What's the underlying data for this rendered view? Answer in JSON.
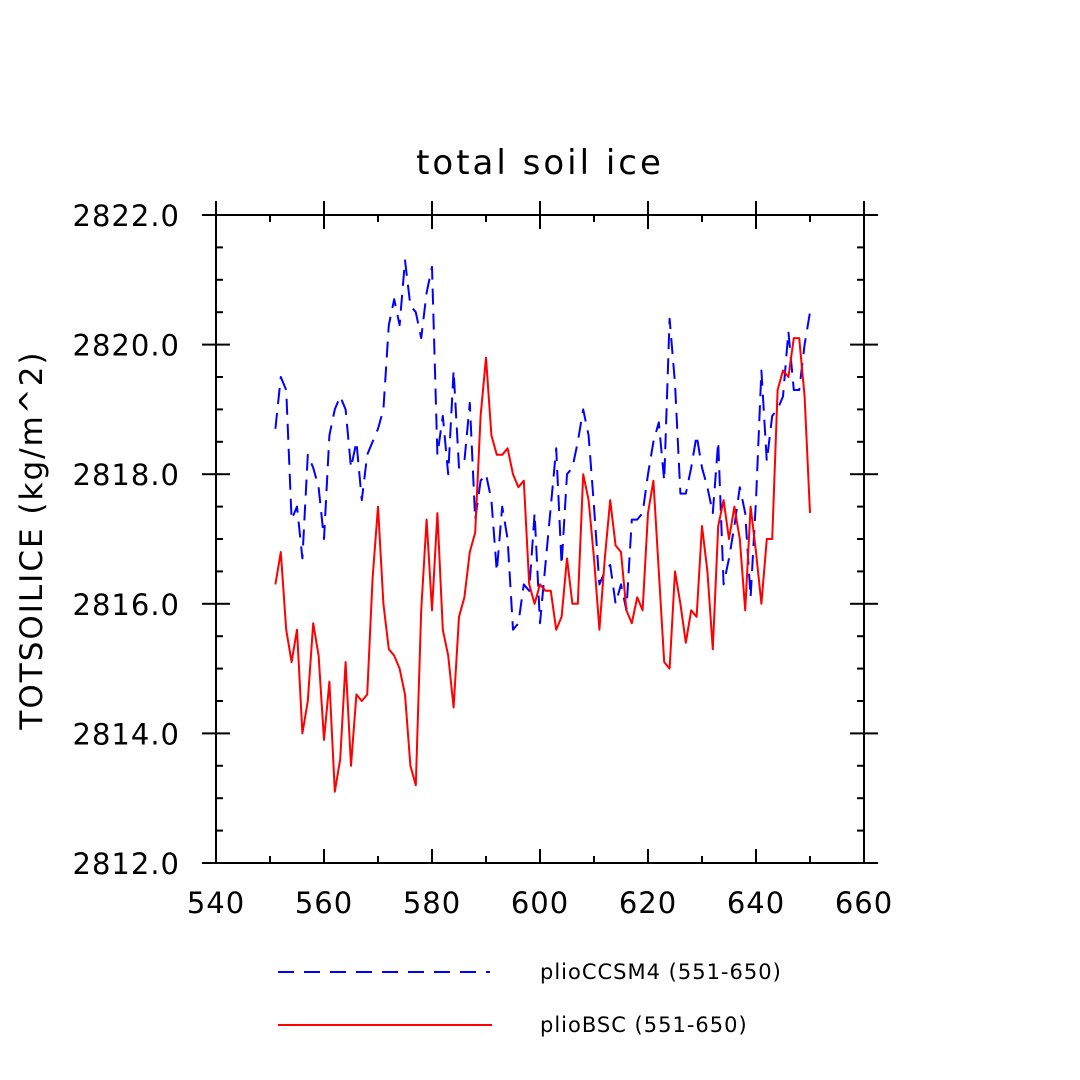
{
  "chart_data": {
    "type": "line",
    "title": "total soil ice",
    "xlabel": "",
    "ylabel": "TOTSOILICE   (kg/m^2)",
    "xlim": [
      540,
      660
    ],
    "ylim": [
      2812.0,
      2822.0
    ],
    "xticks": [
      540,
      560,
      580,
      600,
      620,
      640,
      660
    ],
    "xtick_labels": [
      "540",
      "560",
      "580",
      "600",
      "620",
      "640",
      "660"
    ],
    "yticks": [
      2812.0,
      2814.0,
      2816.0,
      2818.0,
      2820.0,
      2822.0
    ],
    "ytick_labels": [
      "2812.0",
      "2814.0",
      "2816.0",
      "2818.0",
      "2820.0",
      "2822.0"
    ],
    "grid": false,
    "legend_position": "bottom",
    "x": [
      551,
      552,
      553,
      554,
      555,
      556,
      557,
      558,
      559,
      560,
      561,
      562,
      563,
      564,
      565,
      566,
      567,
      568,
      569,
      570,
      571,
      572,
      573,
      574,
      575,
      576,
      577,
      578,
      579,
      580,
      581,
      582,
      583,
      584,
      585,
      586,
      587,
      588,
      589,
      590,
      591,
      592,
      593,
      594,
      595,
      596,
      597,
      598,
      599,
      600,
      601,
      602,
      603,
      604,
      605,
      606,
      607,
      608,
      609,
      610,
      611,
      612,
      613,
      614,
      615,
      616,
      617,
      618,
      619,
      620,
      621,
      622,
      623,
      624,
      625,
      626,
      627,
      628,
      629,
      630,
      631,
      632,
      633,
      634,
      635,
      636,
      637,
      638,
      639,
      640,
      641,
      642,
      643,
      644,
      645,
      646,
      647,
      648,
      649,
      650
    ],
    "series": [
      {
        "name": "plioCCSM4 (551-650)",
        "color": "#0000ff",
        "dash": "dashed",
        "values": [
          2818.7,
          2819.5,
          2819.3,
          2817.3,
          2817.5,
          2816.7,
          2818.3,
          2818.1,
          2817.8,
          2817.0,
          2818.6,
          2819.0,
          2819.2,
          2819.0,
          2818.1,
          2818.5,
          2817.6,
          2818.3,
          2818.5,
          2818.7,
          2819.0,
          2820.3,
          2820.7,
          2820.3,
          2821.3,
          2820.6,
          2820.5,
          2820.1,
          2820.8,
          2821.2,
          2818.3,
          2818.9,
          2818.0,
          2819.6,
          2818.1,
          2818.2,
          2819.1,
          2817.3,
          2817.9,
          2818.0,
          2817.6,
          2816.5,
          2817.5,
          2817.0,
          2815.6,
          2815.7,
          2816.3,
          2816.2,
          2817.4,
          2815.7,
          2816.6,
          2817.5,
          2818.4,
          2816.6,
          2818.0,
          2818.1,
          2818.5,
          2819.0,
          2818.6,
          2817.5,
          2816.3,
          2816.5,
          2816.6,
          2816.0,
          2816.3,
          2815.9,
          2817.3,
          2817.3,
          2817.4,
          2818.0,
          2818.5,
          2818.8,
          2817.9,
          2820.4,
          2819.4,
          2817.7,
          2817.7,
          2818.1,
          2818.6,
          2818.1,
          2817.8,
          2817.4,
          2818.5,
          2816.3,
          2816.7,
          2817.2,
          2817.8,
          2817.4,
          2816.1,
          2817.6,
          2819.6,
          2818.2,
          2818.9,
          2819.0,
          2819.2,
          2820.2,
          2819.3,
          2819.3,
          2820.0,
          2820.5
        ]
      },
      {
        "name": "plioBSC (551-650)",
        "color": "#ff0000",
        "dash": "solid",
        "values": [
          2816.3,
          2816.8,
          2815.6,
          2815.1,
          2815.6,
          2814.0,
          2814.5,
          2815.7,
          2815.2,
          2813.9,
          2814.8,
          2813.1,
          2813.6,
          2815.1,
          2813.5,
          2814.6,
          2814.5,
          2814.6,
          2816.4,
          2817.5,
          2816.0,
          2815.3,
          2815.2,
          2815.0,
          2814.6,
          2813.5,
          2813.2,
          2815.9,
          2817.3,
          2815.9,
          2817.4,
          2815.6,
          2815.2,
          2814.4,
          2815.8,
          2816.1,
          2816.8,
          2817.1,
          2818.9,
          2819.8,
          2818.6,
          2818.3,
          2818.3,
          2818.4,
          2818.0,
          2817.8,
          2817.9,
          2816.3,
          2816.0,
          2816.3,
          2816.2,
          2816.2,
          2815.6,
          2815.8,
          2816.7,
          2816.0,
          2816.0,
          2818.0,
          2817.6,
          2816.7,
          2815.6,
          2816.7,
          2817.6,
          2816.9,
          2816.8,
          2815.9,
          2815.7,
          2816.1,
          2815.9,
          2817.4,
          2817.9,
          2816.5,
          2815.1,
          2815.0,
          2816.5,
          2816.0,
          2815.4,
          2815.9,
          2815.8,
          2817.2,
          2816.5,
          2815.3,
          2817.2,
          2817.6,
          2817.0,
          2817.5,
          2817.0,
          2815.9,
          2817.5,
          2816.8,
          2816.0,
          2817.0,
          2817.0,
          2819.3,
          2819.6,
          2819.5,
          2820.1,
          2820.1,
          2819.2,
          2817.4
        ]
      }
    ]
  }
}
